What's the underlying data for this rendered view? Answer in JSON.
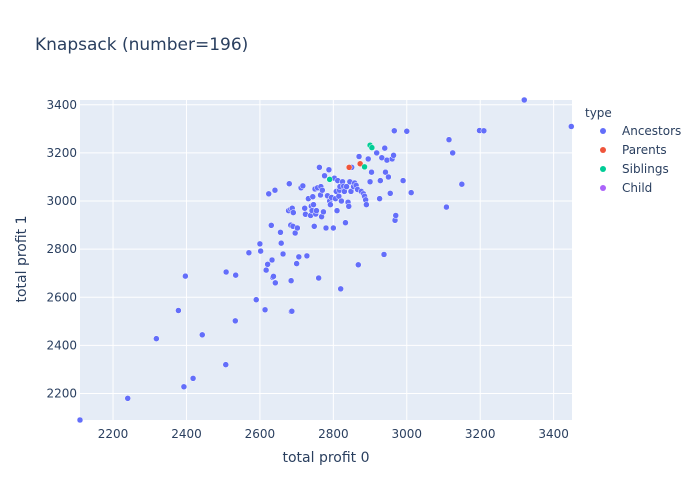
{
  "chart_data": {
    "type": "scatter",
    "title": "Knapsack (number=196)",
    "xlabel": "total profit 0",
    "ylabel": "total profit 1",
    "xlim": [
      2110,
      3450
    ],
    "ylim": [
      2090,
      3420
    ],
    "xticks": [
      2200,
      2400,
      2600,
      2800,
      3000,
      3200,
      3400
    ],
    "yticks": [
      2200,
      2400,
      2600,
      2800,
      3000,
      3200,
      3400
    ],
    "grid": true,
    "legend": {
      "title": "type",
      "placement": "top-right"
    },
    "series": [
      {
        "name": "Ancestors",
        "color": "#636efa",
        "points": [
          [
            2110,
            2090
          ],
          [
            2240,
            2180
          ],
          [
            2318,
            2428
          ],
          [
            2378,
            2545
          ],
          [
            2393,
            2228
          ],
          [
            2397,
            2688
          ],
          [
            2418,
            2263
          ],
          [
            2443,
            2444
          ],
          [
            2507,
            2320
          ],
          [
            2508,
            2705
          ],
          [
            2533,
            2502
          ],
          [
            2534,
            2692
          ],
          [
            2570,
            2785
          ],
          [
            2590,
            2590
          ],
          [
            2600,
            2822
          ],
          [
            2602,
            2792
          ],
          [
            2614,
            2548
          ],
          [
            2617,
            2713
          ],
          [
            2621,
            2737
          ],
          [
            2624,
            3030
          ],
          [
            2631,
            2899
          ],
          [
            2633,
            2755
          ],
          [
            2635,
            2683
          ],
          [
            2637,
            2687
          ],
          [
            2641,
            3045
          ],
          [
            2642,
            2660
          ],
          [
            2656,
            2870
          ],
          [
            2658,
            2825
          ],
          [
            2663,
            2780
          ],
          [
            2678,
            2960
          ],
          [
            2680,
            3072
          ],
          [
            2684,
            2966
          ],
          [
            2684,
            2900
          ],
          [
            2685,
            2669
          ],
          [
            2685,
            2541
          ],
          [
            2687,
            2542
          ],
          [
            2688,
            2970
          ],
          [
            2690,
            2895
          ],
          [
            2691,
            2952
          ],
          [
            2696,
            2867
          ],
          [
            2700,
            2740
          ],
          [
            2702,
            2888
          ],
          [
            2706,
            2768
          ],
          [
            2712,
            3055
          ],
          [
            2717,
            3063
          ],
          [
            2722,
            2970
          ],
          [
            2724,
            2945
          ],
          [
            2728,
            2772
          ],
          [
            2732,
            3010
          ],
          [
            2738,
            2940
          ],
          [
            2740,
            2979
          ],
          [
            2742,
            2960
          ],
          [
            2744,
            3018
          ],
          [
            2746,
            2985
          ],
          [
            2748,
            2895
          ],
          [
            2750,
            3050
          ],
          [
            2752,
            2946
          ],
          [
            2754,
            2960
          ],
          [
            2757,
            3055
          ],
          [
            2760,
            2680
          ],
          [
            2762,
            3140
          ],
          [
            2765,
            3025
          ],
          [
            2766,
            3060
          ],
          [
            2768,
            2935
          ],
          [
            2770,
            3045
          ],
          [
            2773,
            2955
          ],
          [
            2776,
            3105
          ],
          [
            2780,
            2888
          ],
          [
            2784,
            3022
          ],
          [
            2788,
            3130
          ],
          [
            2790,
            3000
          ],
          [
            2792,
            2985
          ],
          [
            2795,
            3015
          ],
          [
            2800,
            2888
          ],
          [
            2803,
            3095
          ],
          [
            2806,
            3010
          ],
          [
            2808,
            3040
          ],
          [
            2810,
            2960
          ],
          [
            2812,
            3085
          ],
          [
            2815,
            3020
          ],
          [
            2817,
            3045
          ],
          [
            2818,
            3060
          ],
          [
            2820,
            2635
          ],
          [
            2822,
            3000
          ],
          [
            2825,
            3080
          ],
          [
            2828,
            3062
          ],
          [
            2830,
            3040
          ],
          [
            2833,
            2910
          ],
          [
            2836,
            3060
          ],
          [
            2840,
            2995
          ],
          [
            2842,
            2978
          ],
          [
            2845,
            3080
          ],
          [
            2848,
            3040
          ],
          [
            2850,
            3140
          ],
          [
            2855,
            3060
          ],
          [
            2858,
            3075
          ],
          [
            2862,
            3065
          ],
          [
            2866,
            3048
          ],
          [
            2868,
            2735
          ],
          [
            2870,
            3185
          ],
          [
            2876,
            3040
          ],
          [
            2882,
            3030
          ],
          [
            2885,
            3020
          ],
          [
            2888,
            3005
          ],
          [
            2890,
            2985
          ],
          [
            2895,
            3175
          ],
          [
            2900,
            3080
          ],
          [
            2904,
            3120
          ],
          [
            2918,
            3200
          ],
          [
            2926,
            3010
          ],
          [
            2928,
            3085
          ],
          [
            2932,
            3180
          ],
          [
            2938,
            2778
          ],
          [
            2940,
            3220
          ],
          [
            2942,
            3120
          ],
          [
            2946,
            3170
          ],
          [
            2950,
            3100
          ],
          [
            2955,
            3032
          ],
          [
            2960,
            3175
          ],
          [
            2964,
            3190
          ],
          [
            2966,
            3292
          ],
          [
            2968,
            2920
          ],
          [
            2970,
            2940
          ],
          [
            2990,
            3085
          ],
          [
            3000,
            3290
          ],
          [
            3012,
            3035
          ],
          [
            3108,
            2975
          ],
          [
            3115,
            3255
          ],
          [
            3125,
            3200
          ],
          [
            3150,
            3070
          ],
          [
            3198,
            3293
          ],
          [
            3210,
            3292
          ],
          [
            3320,
            3420
          ],
          [
            3448,
            3310
          ]
        ]
      },
      {
        "name": "Parents",
        "color": "#ef553b",
        "points": [
          [
            2843,
            3140
          ],
          [
            2873,
            3155
          ]
        ]
      },
      {
        "name": "Siblings",
        "color": "#00cc96",
        "points": [
          [
            2790,
            3090
          ],
          [
            2885,
            3142
          ],
          [
            2900,
            3232
          ],
          [
            2905,
            3222
          ]
        ]
      },
      {
        "name": "Child",
        "color": "#ab63fa",
        "points": []
      }
    ]
  }
}
